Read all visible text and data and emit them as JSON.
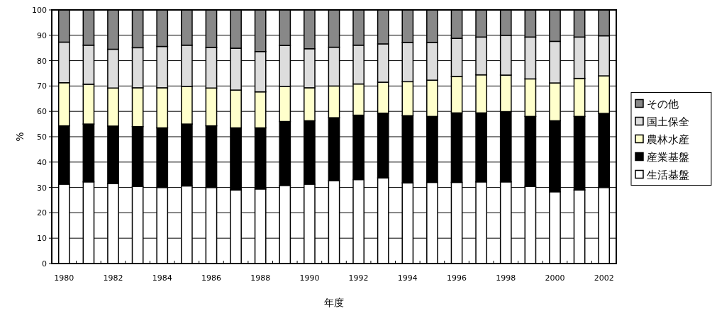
{
  "chart_data": {
    "type": "bar",
    "stacked": true,
    "xlabel": "年度",
    "ylabel": "%",
    "categories": [
      "1980",
      null,
      "1982",
      null,
      "1984",
      null,
      "1986",
      null,
      "1988",
      null,
      "1990",
      null,
      "1992",
      null,
      "1994",
      null,
      "1996",
      null,
      "1998",
      null,
      "2000",
      null,
      "2002"
    ],
    "ylim": [
      0,
      100
    ],
    "yticks": [
      0,
      10,
      20,
      30,
      40,
      50,
      60,
      70,
      80,
      90,
      100
    ],
    "grid": "y",
    "legend": "right",
    "series": [
      {
        "name": "生活基盤",
        "color": "#ffffff",
        "values": [
          31.3,
          32.2,
          31.5,
          30.4,
          30.0,
          30.6,
          30.0,
          29.0,
          29.4,
          30.8,
          31.3,
          32.7,
          33.1,
          33.8,
          31.8,
          32.0,
          32.0,
          32.2,
          32.2,
          30.4,
          28.3,
          29.0,
          30.0
        ]
      },
      {
        "name": "産業基盤",
        "color": "#000000",
        "values": [
          23.0,
          22.8,
          22.7,
          23.6,
          23.5,
          24.4,
          24.3,
          24.5,
          24.1,
          25.2,
          25.0,
          24.8,
          25.4,
          25.5,
          26.5,
          26.0,
          27.4,
          27.2,
          27.7,
          27.6,
          28.0,
          29.0,
          29.2
        ]
      },
      {
        "name": "農林水産",
        "color": "#ffffcc",
        "values": [
          17.0,
          15.7,
          15.0,
          15.3,
          15.8,
          14.8,
          14.9,
          14.9,
          14.2,
          13.8,
          13.0,
          12.5,
          12.3,
          12.2,
          13.4,
          14.3,
          14.4,
          15.0,
          14.4,
          14.8,
          14.9,
          15.0,
          14.8
        ]
      },
      {
        "name": "国土保全",
        "color": "#dddddd",
        "values": [
          16.0,
          15.4,
          15.3,
          15.8,
          16.3,
          16.3,
          16.0,
          16.5,
          15.9,
          16.2,
          15.4,
          15.3,
          15.3,
          15.1,
          15.5,
          14.9,
          15.0,
          14.9,
          15.7,
          16.5,
          16.4,
          16.3,
          15.8
        ]
      },
      {
        "name": "その他",
        "color": "#888888",
        "values": [
          12.7,
          13.9,
          15.5,
          14.9,
          14.4,
          13.9,
          14.8,
          15.1,
          16.4,
          14.0,
          15.3,
          14.7,
          13.9,
          13.4,
          12.8,
          12.8,
          11.2,
          10.7,
          10.0,
          10.7,
          12.4,
          10.7,
          10.2
        ]
      }
    ]
  }
}
